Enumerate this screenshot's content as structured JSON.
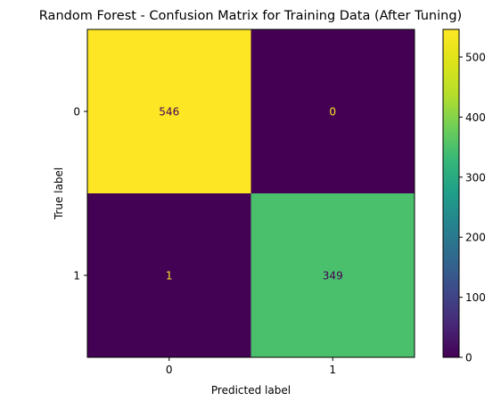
{
  "chart_data": {
    "type": "heatmap",
    "title": "Random Forest - Confusion Matrix for Training Data (After Tuning)",
    "xlabel": "Predicted label",
    "ylabel": "True label",
    "x_categories": [
      "0",
      "1"
    ],
    "y_categories": [
      "0",
      "1"
    ],
    "values": [
      [
        546,
        0
      ],
      [
        1,
        349
      ]
    ],
    "colormap": "viridis",
    "colorbar": {
      "range": [
        0,
        546
      ],
      "ticks": [
        0,
        100,
        200,
        300,
        400,
        500
      ],
      "tick_labels": [
        "0",
        "100",
        "200",
        "300",
        "400",
        "500"
      ]
    },
    "grid": false
  }
}
